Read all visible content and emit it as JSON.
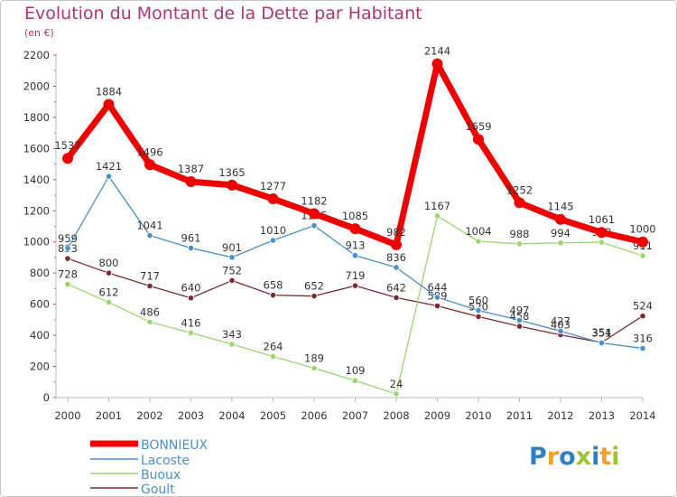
{
  "title": "Evolution du Montant de la Dette par Habitant",
  "unit": "(en €)",
  "logo": {
    "text": "Proxiti",
    "colors": [
      "#2f7fc1",
      "#f0a12a",
      "#2f7fc1",
      "#9cc23a",
      "#2f7fc1",
      "#f0a12a",
      "#9cc23a"
    ]
  },
  "chart_data": {
    "type": "line",
    "categories": [
      "2000",
      "2001",
      "2002",
      "2003",
      "2004",
      "2005",
      "2006",
      "2007",
      "2008",
      "2009",
      "2010",
      "2011",
      "2012",
      "2013",
      "2014"
    ],
    "ylim": [
      0,
      2200
    ],
    "yticks": [
      0,
      200,
      400,
      600,
      800,
      1000,
      1200,
      1400,
      1600,
      1800,
      2000,
      2200
    ],
    "grid": false,
    "legend_position": "bottom-left",
    "series": [
      {
        "name": "Goult",
        "color": "#7a2a32",
        "values": [
          893,
          800,
          717,
          640,
          752,
          658,
          652,
          719,
          642,
          589,
          520,
          458,
          403,
          354,
          524
        ],
        "labels": [
          "893",
          "800",
          "717",
          "640",
          "752",
          "658",
          "652",
          "719",
          "642",
          "589",
          "520",
          "458",
          "403",
          "354",
          "524"
        ]
      },
      {
        "name": "Buoux",
        "color": "#9ad66b",
        "values": [
          728,
          612,
          486,
          416,
          343,
          264,
          189,
          109,
          24,
          1167,
          1004,
          988,
          994,
          998,
          911
        ],
        "labels": [
          "728",
          "612",
          "486",
          "416",
          "343",
          "264",
          "189",
          "109",
          "24",
          "1167",
          "1004",
          "988",
          "994",
          "998",
          "911"
        ]
      },
      {
        "name": "Lacoste",
        "color": "#4a8fc8",
        "values": [
          959,
          1421,
          1041,
          961,
          901,
          1010,
          1105,
          913,
          836,
          644,
          560,
          497,
          427,
          351,
          316
        ],
        "labels": [
          "959",
          "1421",
          "1041",
          "961",
          "901",
          "1010",
          "1105",
          "913",
          "836",
          "644",
          "560",
          "497",
          "427",
          "351",
          "316"
        ]
      },
      {
        "name": "BONNIEUX",
        "color": "#ee0000",
        "values": [
          1537,
          1884,
          1496,
          1387,
          1365,
          1277,
          1182,
          1085,
          982,
          2144,
          1659,
          1252,
          1145,
          1061,
          1000
        ],
        "labels": [
          "1537",
          "1884",
          "1496",
          "1387",
          "1365",
          "1277",
          "1182",
          "1085",
          "982",
          "2144",
          "1659",
          "1252",
          "1145",
          "1061",
          "1000"
        ]
      }
    ],
    "legend": [
      {
        "name": "BONNIEUX",
        "color": "#ee0000"
      },
      {
        "name": "Lacoste",
        "color": "#4a8fc8"
      },
      {
        "name": "Buoux",
        "color": "#9ad66b"
      },
      {
        "name": "Goult",
        "color": "#7a2a32"
      }
    ]
  }
}
